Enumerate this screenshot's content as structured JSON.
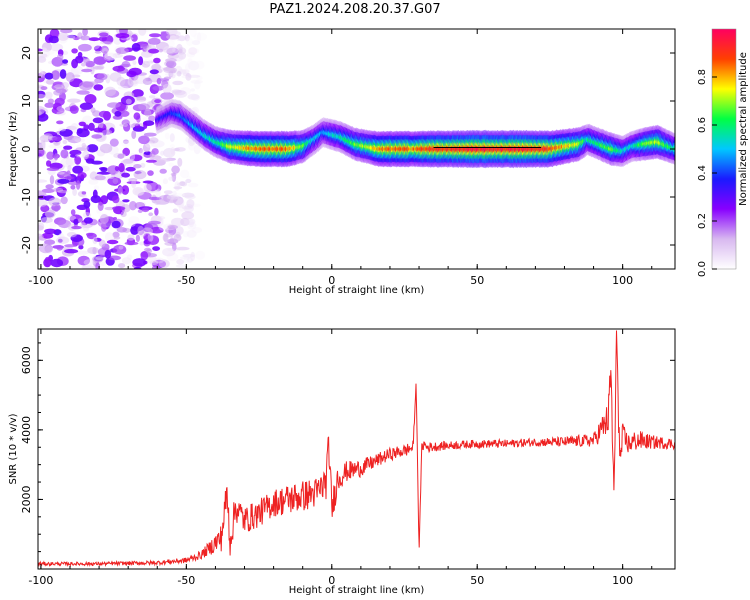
{
  "page_title": "PAZ1.2024.208.20.37.G07",
  "chart_data": [
    {
      "type": "heatmap",
      "title": "PAZ1.2024.208.20.37.G07",
      "xlabel": "Height of straight line (km)",
      "ylabel": "Frequency (Hz)",
      "xlim": [
        -101,
        118
      ],
      "ylim": [
        -25,
        25
      ],
      "x_ticks": [
        -100,
        -50,
        0,
        50,
        100
      ],
      "y_ticks": [
        -20,
        -10,
        0,
        10,
        20
      ],
      "grid": false,
      "colorbar": {
        "label": "Normalized spectral amplitude",
        "range": [
          0.0,
          1.0
        ],
        "ticks": [
          "0.0",
          "0.2",
          "0.4",
          "0.6",
          "0.8"
        ],
        "colormap": [
          "#ffffff",
          "#d8b8f0",
          "#8800ff",
          "#1a1aff",
          "#00c8ff",
          "#00ff44",
          "#ffff00",
          "#ff4000",
          "#ff0060"
        ]
      },
      "noise_region_km": [
        -101,
        -45
      ],
      "ridge": {
        "x": [
          -60,
          -55,
          -52,
          -48,
          -44,
          -40,
          -35,
          -30,
          -25,
          -20,
          -15,
          -10,
          -6,
          -3,
          0,
          3,
          8,
          12,
          16,
          20,
          24,
          28,
          35,
          50,
          65,
          75,
          85,
          88,
          92,
          96,
          100,
          103,
          107,
          112,
          118
        ],
        "y": [
          6,
          7.5,
          7,
          5,
          3,
          1.5,
          0.5,
          0.2,
          0,
          0,
          0,
          0.5,
          2,
          3.5,
          3,
          2.5,
          1,
          0.5,
          0,
          0,
          0,
          0,
          0,
          0,
          0,
          0,
          1,
          2,
          1,
          0,
          -0.5,
          0.5,
          1,
          1.5,
          0
        ],
        "intensity": [
          0.35,
          0.4,
          0.45,
          0.5,
          0.55,
          0.6,
          0.75,
          0.85,
          0.9,
          0.9,
          0.9,
          0.7,
          0.55,
          0.5,
          0.55,
          0.6,
          0.7,
          0.75,
          0.85,
          0.9,
          0.9,
          0.9,
          0.95,
          1.0,
          1.0,
          0.95,
          0.75,
          0.6,
          0.65,
          0.7,
          0.6,
          0.55,
          0.7,
          0.75,
          0.6
        ]
      }
    },
    {
      "type": "line",
      "xlabel": "Height of straight line (km)",
      "ylabel": "SNR (10 * v/v)",
      "xlim": [
        -101,
        118
      ],
      "ylim": [
        0,
        6900
      ],
      "x_ticks": [
        -100,
        -50,
        0,
        50,
        100
      ],
      "y_ticks": [
        2000,
        4000,
        6000
      ],
      "grid": false,
      "series": [
        {
          "color": "#ee2222",
          "x": [
            -101,
            -80,
            -60,
            -50,
            -45,
            -42,
            -38,
            -36,
            -35,
            -33,
            -30,
            -25,
            -20,
            -15,
            -10,
            -5,
            -2,
            -1,
            0,
            2,
            5,
            10,
            15,
            20,
            25,
            28,
            29,
            30,
            31,
            33,
            40,
            50,
            60,
            70,
            80,
            90,
            95,
            96,
            97,
            98,
            99,
            100,
            102,
            105,
            110,
            118
          ],
          "y": [
            150,
            150,
            180,
            250,
            400,
            600,
            900,
            2200,
            800,
            1800,
            1400,
            1600,
            1900,
            2000,
            2100,
            2200,
            2500,
            3600,
            1700,
            2600,
            2800,
            2900,
            3100,
            3300,
            3400,
            3500,
            5400,
            500,
            3600,
            3500,
            3550,
            3600,
            3600,
            3650,
            3650,
            3700,
            4300,
            5700,
            2000,
            6900,
            3000,
            3800,
            3600,
            3700,
            3650,
            3600
          ],
          "noise_amplitude": [
            50,
            50,
            60,
            80,
            120,
            200,
            400,
            500,
            500,
            450,
            400,
            400,
            400,
            450,
            450,
            450,
            500,
            500,
            500,
            400,
            300,
            250,
            200,
            180,
            180,
            200,
            0,
            0,
            200,
            150,
            120,
            120,
            120,
            120,
            150,
            200,
            500,
            600,
            600,
            600,
            600,
            400,
            300,
            300,
            200,
            150
          ]
        }
      ]
    }
  ]
}
